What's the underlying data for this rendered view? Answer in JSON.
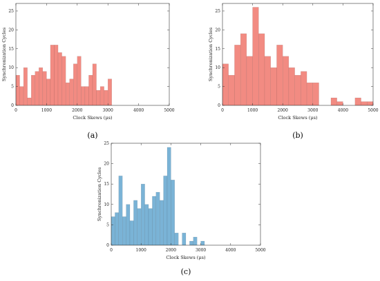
{
  "chart_data": [
    {
      "type": "bar",
      "panel_label": "(a)",
      "xlabel": "Clock Skews (μs)",
      "ylabel": "Synchronization Cycles",
      "xlim": [
        0,
        5000
      ],
      "ylim": [
        0,
        27
      ],
      "xticks": [
        0,
        1000,
        2000,
        3000,
        4000,
        5000
      ],
      "yticks": [
        0,
        5,
        10,
        15,
        20,
        25
      ],
      "bin_width": 125,
      "x": [
        0,
        125,
        250,
        375,
        500,
        625,
        750,
        875,
        1000,
        1125,
        1250,
        1375,
        1500,
        1625,
        1750,
        1875,
        2000,
        2125,
        2250,
        2375,
        2500,
        2625,
        2750,
        2875,
        3000,
        3125,
        3250
      ],
      "values": [
        8,
        5,
        10,
        2,
        8,
        9,
        10,
        9,
        7,
        16,
        16,
        14,
        13,
        6,
        7,
        11,
        13,
        5,
        5,
        8,
        11,
        4,
        5,
        4,
        7,
        0,
        0
      ],
      "color": "#f28b82"
    },
    {
      "type": "bar",
      "panel_label": "(b)",
      "xlabel": "Clock Skews (μs)",
      "ylabel": "Synchronization Cycles",
      "xlim": [
        0,
        5000
      ],
      "ylim": [
        0,
        27
      ],
      "xticks": [
        0,
        1000,
        2000,
        3000,
        4000,
        5000
      ],
      "yticks": [
        0,
        5,
        10,
        15,
        20,
        25
      ],
      "bin_width": 200,
      "x": [
        0,
        200,
        400,
        600,
        800,
        1000,
        1200,
        1400,
        1600,
        1800,
        2000,
        2200,
        2400,
        2600,
        2800,
        3000,
        3200,
        3400,
        3600,
        3800,
        4000,
        4200,
        4400,
        4600,
        4800
      ],
      "values": [
        11,
        8,
        16,
        19,
        13,
        26,
        19,
        13,
        10,
        16,
        13,
        10,
        8,
        9,
        6,
        6,
        0,
        0,
        2,
        1,
        0,
        0,
        2,
        1,
        1
      ],
      "color": "#f28b82"
    },
    {
      "type": "bar",
      "panel_label": "(c)",
      "xlabel": "Clock Skews (μs)",
      "ylabel": "Synchronization Cycles",
      "xlim": [
        0,
        5000
      ],
      "ylim": [
        0,
        25
      ],
      "xticks": [
        0,
        1000,
        2000,
        3000,
        4000,
        5000
      ],
      "yticks": [
        0,
        5,
        10,
        15,
        20,
        25
      ],
      "bin_width": 125,
      "x": [
        0,
        125,
        250,
        375,
        500,
        625,
        750,
        875,
        1000,
        1125,
        1250,
        1375,
        1500,
        1625,
        1750,
        1875,
        2000,
        2125,
        2250,
        2375,
        2500,
        2625,
        2750,
        2875,
        3000,
        3125,
        3250
      ],
      "values": [
        7,
        8,
        17,
        7,
        10,
        6,
        11,
        9,
        15,
        10,
        9,
        12,
        13,
        11,
        17,
        24,
        16,
        3,
        0,
        3,
        0,
        1,
        2,
        0,
        1,
        0,
        0
      ],
      "color": "#7ab3d6"
    }
  ]
}
